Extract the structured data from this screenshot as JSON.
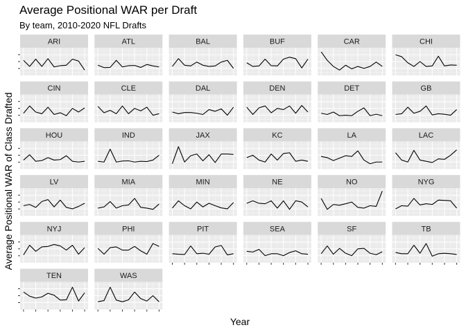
{
  "chart_data": {
    "type": "line",
    "title": "Average Positional WAR per Draft",
    "subtitle": "By team, 2010-2020 NFL Drafts",
    "xlabel": "Year",
    "ylabel": "Average Positional WAR of Class Drafted",
    "x": [
      2010,
      2011,
      2012,
      2013,
      2014,
      2015,
      2016,
      2017,
      2018,
      2019,
      2020
    ],
    "ylim": [
      0,
      1
    ],
    "facets": [
      {
        "team": "ARI",
        "values": [
          0.55,
          0.3,
          0.6,
          0.3,
          0.62,
          0.28,
          0.33,
          0.35,
          0.6,
          0.52,
          0.15
        ]
      },
      {
        "team": "ATL",
        "values": [
          0.35,
          0.25,
          0.26,
          0.55,
          0.28,
          0.33,
          0.34,
          0.26,
          0.38,
          0.32,
          0.28
        ]
      },
      {
        "team": "BAL",
        "values": [
          0.3,
          0.62,
          0.35,
          0.32,
          0.48,
          0.35,
          0.3,
          0.32,
          0.48,
          0.55,
          0.22
        ]
      },
      {
        "team": "BUF",
        "values": [
          0.45,
          0.3,
          0.32,
          0.6,
          0.33,
          0.32,
          0.6,
          0.68,
          0.62,
          0.24,
          0.6
        ]
      },
      {
        "team": "CAR",
        "values": [
          0.9,
          0.55,
          0.3,
          0.15,
          0.35,
          0.2,
          0.3,
          0.22,
          0.3,
          0.48,
          0.3
        ]
      },
      {
        "team": "CHI",
        "values": [
          0.78,
          0.7,
          0.45,
          0.3,
          0.5,
          0.3,
          0.32,
          0.72,
          0.32,
          0.36,
          0.35
        ]
      },
      {
        "team": "CIN",
        "values": [
          0.3,
          0.6,
          0.35,
          0.28,
          0.55,
          0.25,
          0.32,
          0.2,
          0.5,
          0.35,
          0.52
        ]
      },
      {
        "team": "CLE",
        "values": [
          0.58,
          0.32,
          0.42,
          0.28,
          0.6,
          0.28,
          0.5,
          0.4,
          0.55,
          0.22,
          0.28
        ]
      },
      {
        "team": "DAL",
        "values": [
          0.35,
          0.28,
          0.33,
          0.33,
          0.3,
          0.25,
          0.45,
          0.38,
          0.48,
          0.22,
          0.55
        ]
      },
      {
        "team": "DEN",
        "values": [
          0.55,
          0.25,
          0.52,
          0.6,
          0.32,
          0.5,
          0.45,
          0.6,
          0.3,
          0.62,
          0.35
        ]
      },
      {
        "team": "DET",
        "values": [
          0.3,
          0.25,
          0.35,
          0.2,
          0.22,
          0.2,
          0.38,
          0.52,
          0.2,
          0.26,
          0.2
        ]
      },
      {
        "team": "GB",
        "values": [
          0.25,
          0.28,
          0.55,
          0.3,
          0.38,
          0.6,
          0.23,
          0.28,
          0.26,
          0.22,
          0.45
        ]
      },
      {
        "team": "HOU",
        "values": [
          0.3,
          0.52,
          0.25,
          0.28,
          0.4,
          0.3,
          0.32,
          0.48,
          0.25,
          0.22,
          0.25
        ]
      },
      {
        "team": "IND",
        "values": [
          0.25,
          0.22,
          0.75,
          0.22,
          0.26,
          0.27,
          0.22,
          0.25,
          0.24,
          0.3,
          0.5
        ]
      },
      {
        "team": "JAX",
        "values": [
          0.15,
          0.85,
          0.22,
          0.48,
          0.55,
          0.27,
          0.52,
          0.2,
          0.55,
          0.55,
          0.53
        ]
      },
      {
        "team": "KC",
        "values": [
          0.4,
          0.5,
          0.3,
          0.22,
          0.55,
          0.3,
          0.57,
          0.6,
          0.25,
          0.3,
          0.25
        ]
      },
      {
        "team": "LA",
        "values": [
          0.45,
          0.4,
          0.28,
          0.38,
          0.48,
          0.45,
          0.68,
          0.3,
          0.15,
          0.22,
          0.22
        ]
      },
      {
        "team": "LAC",
        "values": [
          0.6,
          0.3,
          0.22,
          0.7,
          0.3,
          0.25,
          0.2,
          0.35,
          0.33,
          0.5,
          0.72
        ]
      },
      {
        "team": "LV",
        "values": [
          0.35,
          0.4,
          0.28,
          0.52,
          0.6,
          0.3,
          0.58,
          0.28,
          0.22,
          0.32,
          0.45
        ]
      },
      {
        "team": "MIA",
        "values": [
          0.25,
          0.3,
          0.52,
          0.25,
          0.35,
          0.38,
          0.65,
          0.28,
          0.25,
          0.2,
          0.42
        ]
      },
      {
        "team": "MIN",
        "values": [
          0.25,
          0.55,
          0.35,
          0.22,
          0.5,
          0.3,
          0.45,
          0.35,
          0.26,
          0.22,
          0.48
        ]
      },
      {
        "team": "NE",
        "values": [
          0.45,
          0.55,
          0.45,
          0.43,
          0.55,
          0.25,
          0.55,
          0.2,
          0.55,
          0.5,
          0.3
        ]
      },
      {
        "team": "NO",
        "values": [
          0.65,
          0.2,
          0.4,
          0.37,
          0.43,
          0.5,
          0.28,
          0.25,
          0.35,
          0.32,
          0.95
        ]
      },
      {
        "team": "NYG",
        "values": [
          0.22,
          0.35,
          0.33,
          0.65,
          0.38,
          0.43,
          0.4,
          0.58,
          0.57,
          0.55,
          0.25
        ]
      },
      {
        "team": "NYJ",
        "values": [
          0.25,
          0.65,
          0.4,
          0.58,
          0.6,
          0.68,
          0.62,
          0.45,
          0.65,
          0.28,
          0.55
        ]
      },
      {
        "team": "PHI",
        "values": [
          0.52,
          0.28,
          0.55,
          0.58,
          0.45,
          0.45,
          0.6,
          0.42,
          0.28,
          0.72,
          0.6
        ]
      },
      {
        "team": "PIT",
        "values": [
          0.3,
          0.28,
          0.27,
          0.62,
          0.3,
          0.32,
          0.28,
          0.58,
          0.64,
          0.25,
          0.3
        ]
      },
      {
        "team": "SEA",
        "values": [
          0.4,
          0.37,
          0.48,
          0.22,
          0.3,
          0.3,
          0.22,
          0.35,
          0.42,
          0.3,
          0.28
        ]
      },
      {
        "team": "SF",
        "values": [
          0.3,
          0.62,
          0.28,
          0.52,
          0.32,
          0.22,
          0.5,
          0.52,
          0.32,
          0.26,
          0.38
        ]
      },
      {
        "team": "TB",
        "values": [
          0.35,
          0.3,
          0.3,
          0.65,
          0.32,
          0.72,
          0.2,
          0.3,
          0.32,
          0.3,
          0.27
        ]
      },
      {
        "team": "TEN",
        "values": [
          0.65,
          0.48,
          0.4,
          0.45,
          0.6,
          0.52,
          0.32,
          0.33,
          0.85,
          0.28,
          0.62
        ]
      },
      {
        "team": "WAS",
        "values": [
          0.25,
          0.3,
          0.85,
          0.32,
          0.25,
          0.33,
          0.65,
          0.38,
          0.28,
          0.5,
          0.25
        ]
      }
    ],
    "layout": {
      "columns": 6,
      "rows": 6
    },
    "grid": true,
    "legend": "none"
  }
}
